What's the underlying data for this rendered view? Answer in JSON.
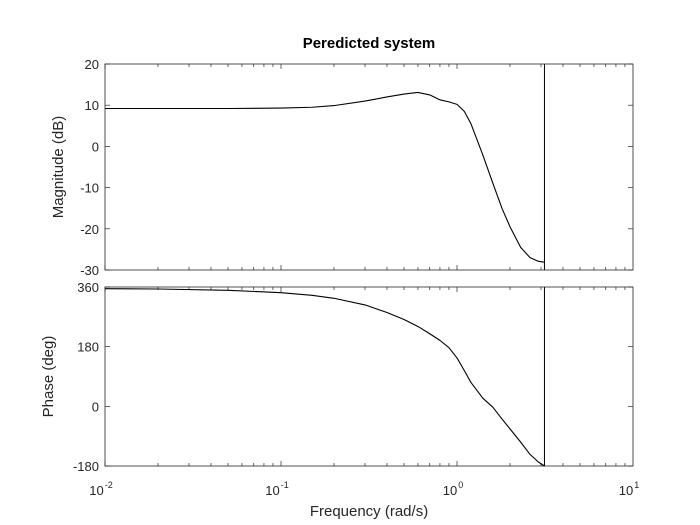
{
  "chart_data": {
    "type": "line",
    "title": "Peredicted system",
    "xlabel": "Frequency  (rad/s)",
    "xscale": "log",
    "xlim": [
      0.01,
      10
    ],
    "xticks": [
      {
        "base": "10",
        "exp": "-2"
      },
      {
        "base": "10",
        "exp": "-1"
      },
      {
        "base": "10",
        "exp": "0"
      },
      {
        "base": "10",
        "exp": "1"
      }
    ],
    "vertical_line_x": 3.14,
    "subplots": [
      {
        "name": "magnitude",
        "ylabel": "Magnitude (dB)",
        "ylim": [
          -30,
          20
        ],
        "yticks": [
          "20",
          "10",
          "0",
          "-10",
          "-20",
          "-30"
        ],
        "ytick_values": [
          20,
          10,
          0,
          -10,
          -20,
          -30
        ],
        "series": [
          {
            "x": [
              0.01,
              0.02,
              0.05,
              0.1,
              0.15,
              0.2,
              0.3,
              0.4,
              0.5,
              0.6,
              0.7,
              0.8,
              0.9,
              1.0,
              1.1,
              1.2,
              1.4,
              1.6,
              1.8,
              2.0,
              2.3,
              2.6,
              2.9,
              3.14
            ],
            "y": [
              9.2,
              9.2,
              9.2,
              9.3,
              9.5,
              9.9,
              11.0,
              12.0,
              12.7,
              13.1,
              12.5,
              11.3,
              10.8,
              10.2,
              8.5,
              5.5,
              -2.0,
              -9.0,
              -15.0,
              -19.5,
              -24.5,
              -27.0,
              -27.9,
              -28.1
            ]
          }
        ]
      },
      {
        "name": "phase",
        "ylabel": "Phase (deg)",
        "ylim": [
          -180,
          360
        ],
        "yticks": [
          "360",
          "180",
          "0",
          "-180"
        ],
        "ytick_values": [
          360,
          180,
          0,
          -180
        ],
        "series": [
          {
            "x": [
              0.01,
              0.02,
              0.05,
              0.1,
              0.15,
              0.2,
              0.3,
              0.4,
              0.5,
              0.6,
              0.7,
              0.8,
              0.9,
              1.0,
              1.1,
              1.2,
              1.4,
              1.6,
              1.8,
              2.0,
              2.3,
              2.6,
              2.9,
              3.14
            ],
            "y": [
              355,
              354,
              350,
              343,
              335,
              326,
              306,
              283,
              262,
              241,
              219,
              199,
              177,
              146,
              108,
              72,
              25,
              -3,
              -38,
              -68,
              -108,
              -145,
              -168,
              -180
            ]
          }
        ]
      }
    ]
  }
}
